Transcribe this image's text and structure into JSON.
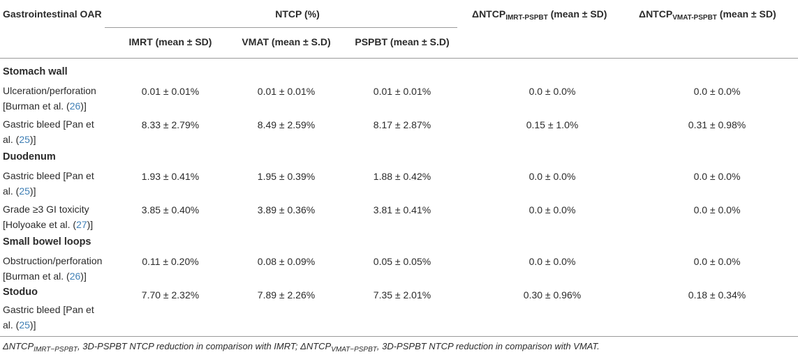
{
  "headers": {
    "oar": "Gastrointestinal OAR",
    "ntcp": "NTCP (%)",
    "imrt": "IMRT (mean ± SD)",
    "vmat": "VMAT (mean ± S.D)",
    "pspbt": "PSPBT (mean ± S.D)",
    "delta1_main": "ΔNTCP",
    "delta1_sub": "IMRT-PSPBT",
    "delta1_tail": " (mean ± SD)",
    "delta2_main": "ΔNTCP",
    "delta2_sub": "VMAT-PSPBT",
    "delta2_tail": " (mean ± SD)"
  },
  "sections": {
    "stomach": "Stomach wall",
    "duodenum": "Duodenum",
    "bowel": "Small bowel loops",
    "stoduo": "Stoduo"
  },
  "rows": [
    {
      "pre": "Ulceration/perforation [Burman et al. (",
      "cite": "26",
      "post": ")]",
      "imrt": "0.01 ± 0.01%",
      "vmat": "0.01 ± 0.01%",
      "pspbt": "0.01 ± 0.01%",
      "d1": "0.0 ± 0.0%",
      "d2": "0.0 ± 0.0%"
    },
    {
      "pre": "Gastric bleed [Pan et al. (",
      "cite": "25",
      "post": ")]",
      "imrt": "8.33 ± 2.79%",
      "vmat": "8.49 ± 2.59%",
      "pspbt": "8.17 ± 2.87%",
      "d1": "0.15 ± 1.0%",
      "d2": "0.31 ± 0.98%"
    },
    {
      "pre": "Gastric bleed [Pan et al. (",
      "cite": "25",
      "post": ")]",
      "imrt": "1.93 ± 0.41%",
      "vmat": "1.95 ± 0.39%",
      "pspbt": "1.88 ± 0.42%",
      "d1": "0.0 ± 0.0%",
      "d2": "0.0 ± 0.0%"
    },
    {
      "pre": "Grade ≥3 GI toxicity [Holyoake et al. (",
      "cite": "27",
      "post": ")]",
      "imrt": "3.85 ± 0.40%",
      "vmat": "3.89 ± 0.36%",
      "pspbt": "3.81 ± 0.41%",
      "d1": "0.0 ± 0.0%",
      "d2": "0.0 ± 0.0%"
    },
    {
      "pre": "Obstruction/perforation [Burman et al. (",
      "cite": "26",
      "post": ")]",
      "imrt": "0.11 ± 0.20%",
      "vmat": "0.08 ± 0.09%",
      "pspbt": "0.05 ± 0.05%",
      "d1": "0.0 ± 0.0%",
      "d2": "0.0 ± 0.0%"
    },
    {
      "pre": "Gastric bleed [Pan et al. (",
      "cite": "25",
      "post": ")]",
      "imrt": "7.70 ± 2.32%",
      "vmat": "7.89 ± 2.26%",
      "pspbt": "7.35 ± 2.01%",
      "d1": "0.30 ± 0.96%",
      "d2": "0.18 ± 0.34%"
    }
  ],
  "footnote": {
    "a_main": "ΔNTCP",
    "a_sub": "IMRT−PSPBT",
    "a_text": ", 3D-PSPBT NTCP reduction in comparison with IMRT; ",
    "b_main": "ΔNTCP",
    "b_sub": "VMAT−PSPBT",
    "b_text": ", 3D-PSPBT NTCP reduction in comparison with VMAT."
  }
}
